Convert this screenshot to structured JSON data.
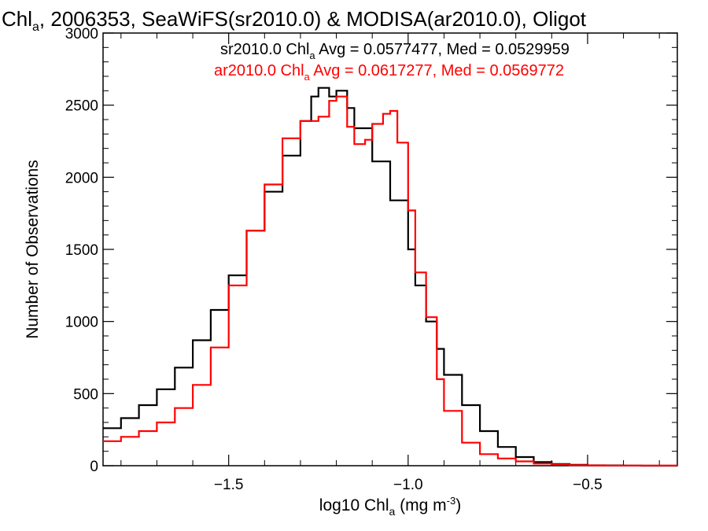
{
  "chart_data": {
    "type": "line",
    "title": {
      "prefix": "Chl",
      "sub": "a",
      "rest": ", 2006353, SeaWiFS(sr2010.0) & MODISA(ar2010.0), Oligot"
    },
    "xlabel": {
      "prefix": "log10 Chl",
      "sub": "a",
      "mid": " (mg m",
      "sup": "-3",
      "suffix": ")"
    },
    "ylabel": "Number of Observations",
    "xlim": [
      -1.85,
      -0.25
    ],
    "ylim": [
      0,
      3000
    ],
    "xticks": [
      -1.5,
      -1.0,
      -0.5
    ],
    "xtick_labels": [
      "−1.5",
      "−1.0",
      "−0.5"
    ],
    "yticks": [
      0,
      500,
      1000,
      1500,
      2000,
      2500,
      3000
    ],
    "ytick_labels": [
      "0",
      "500",
      "1000",
      "1500",
      "2000",
      "2500",
      "3000"
    ],
    "grid": false,
    "step": true,
    "series": [
      {
        "name": "sr2010.0",
        "color": "#000000",
        "legend": {
          "pre": "sr2010.0 Chl",
          "sub": "a",
          "post": " Avg = 0.0577477, Med = 0.0529959"
        },
        "points": [
          [
            -1.85,
            260
          ],
          [
            -1.8,
            330
          ],
          [
            -1.75,
            420
          ],
          [
            -1.7,
            530
          ],
          [
            -1.65,
            680
          ],
          [
            -1.6,
            870
          ],
          [
            -1.55,
            1080
          ],
          [
            -1.5,
            1320
          ],
          [
            -1.45,
            1630
          ],
          [
            -1.4,
            1900
          ],
          [
            -1.35,
            2150
          ],
          [
            -1.3,
            2390
          ],
          [
            -1.27,
            2560
          ],
          [
            -1.25,
            2620
          ],
          [
            -1.22,
            2560
          ],
          [
            -1.2,
            2600
          ],
          [
            -1.17,
            2480
          ],
          [
            -1.15,
            2340
          ],
          [
            -1.1,
            2110
          ],
          [
            -1.05,
            1840
          ],
          [
            -1.0,
            1500
          ],
          [
            -0.98,
            1250
          ],
          [
            -0.95,
            1000
          ],
          [
            -0.92,
            810
          ],
          [
            -0.9,
            630
          ],
          [
            -0.85,
            420
          ],
          [
            -0.8,
            240
          ],
          [
            -0.75,
            130
          ],
          [
            -0.7,
            60
          ],
          [
            -0.65,
            25
          ],
          [
            -0.6,
            12
          ],
          [
            -0.55,
            6
          ],
          [
            -0.5,
            3
          ],
          [
            -0.45,
            2
          ],
          [
            -0.4,
            1
          ],
          [
            -0.35,
            0
          ],
          [
            -0.25,
            0
          ]
        ]
      },
      {
        "name": "ar2010.0",
        "color": "#ff0000",
        "legend": {
          "pre": "ar2010.0 Chl",
          "sub": "a",
          "post": " Avg = 0.0617277, Med = 0.0569772"
        },
        "points": [
          [
            -1.85,
            170
          ],
          [
            -1.8,
            200
          ],
          [
            -1.75,
            240
          ],
          [
            -1.7,
            300
          ],
          [
            -1.65,
            400
          ],
          [
            -1.6,
            560
          ],
          [
            -1.55,
            820
          ],
          [
            -1.5,
            1250
          ],
          [
            -1.45,
            1630
          ],
          [
            -1.4,
            1950
          ],
          [
            -1.35,
            2270
          ],
          [
            -1.3,
            2390
          ],
          [
            -1.25,
            2420
          ],
          [
            -1.22,
            2530
          ],
          [
            -1.2,
            2560
          ],
          [
            -1.17,
            2350
          ],
          [
            -1.15,
            2230
          ],
          [
            -1.12,
            2260
          ],
          [
            -1.1,
            2370
          ],
          [
            -1.07,
            2440
          ],
          [
            -1.05,
            2460
          ],
          [
            -1.03,
            2240
          ],
          [
            -1.0,
            1770
          ],
          [
            -0.98,
            1340
          ],
          [
            -0.95,
            1030
          ],
          [
            -0.92,
            600
          ],
          [
            -0.9,
            380
          ],
          [
            -0.85,
            160
          ],
          [
            -0.8,
            80
          ],
          [
            -0.75,
            50
          ],
          [
            -0.7,
            30
          ],
          [
            -0.65,
            15
          ],
          [
            -0.6,
            8
          ],
          [
            -0.55,
            4
          ],
          [
            -0.5,
            2
          ],
          [
            -0.45,
            1
          ],
          [
            -0.25,
            0
          ]
        ]
      }
    ]
  }
}
